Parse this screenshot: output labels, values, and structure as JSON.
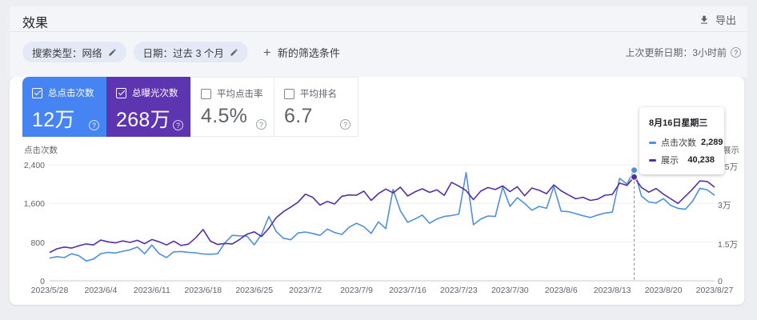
{
  "page": {
    "title": "效果",
    "export_label": "导出",
    "filters": [
      {
        "label": "搜索类型：网络"
      },
      {
        "label": "日期：过去 3 个月"
      }
    ],
    "new_filter_label": "新的筛选条件",
    "last_updated": "上次更新日期：3小时前"
  },
  "cards": [
    {
      "label": "总点击次数",
      "value": "12万",
      "checked": true,
      "color": "#4684f3"
    },
    {
      "label": "总曝光次数",
      "value": "268万",
      "checked": true,
      "color": "#5e35b1"
    },
    {
      "label": "平均点击率",
      "value": "4.5%",
      "checked": false,
      "color": ""
    },
    {
      "label": "平均排名",
      "value": "6.7",
      "checked": false,
      "color": ""
    }
  ],
  "tooltip": {
    "title": "8月16日星期三",
    "rows": [
      {
        "label": "点击次数",
        "value": "2,289",
        "color": "#4f90d9"
      },
      {
        "label": "展示",
        "value": "40,238",
        "color": "#5430a5"
      }
    ]
  },
  "chart_data": {
    "type": "line",
    "legend_position": "none",
    "grid": true,
    "x_tick_labels": [
      "2023/5/28",
      "2023/6/4",
      "2023/6/11",
      "2023/6/18",
      "2023/6/25",
      "2023/7/2",
      "2023/7/9",
      "2023/7/16",
      "2023/7/23",
      "2023/7/30",
      "2023/8/6",
      "2023/8/13",
      "2023/8/20",
      "2023/8/27"
    ],
    "x_tick_indices": [
      0,
      7,
      14,
      21,
      28,
      35,
      42,
      49,
      56,
      63,
      70,
      77,
      84,
      91
    ],
    "left_axis": {
      "title": "点击次数",
      "ticks": [
        "2,400",
        "1,600",
        "800",
        "0"
      ],
      "tick_values": [
        2400,
        1600,
        800,
        0
      ],
      "max": 2400
    },
    "right_axis": {
      "title": "展示",
      "ticks": [
        "4.5万",
        "3万",
        "1.5万",
        "0"
      ],
      "tick_values": [
        45000,
        30000,
        15000,
        0
      ],
      "max": 45000
    },
    "series": [
      {
        "name": "点击次数",
        "axis": "left",
        "color": "#4f90d9",
        "values": [
          470,
          500,
          480,
          560,
          520,
          410,
          450,
          560,
          590,
          575,
          610,
          640,
          700,
          560,
          740,
          560,
          480,
          600,
          605,
          590,
          580,
          555,
          550,
          560,
          790,
          940,
          930,
          925,
          745,
          960,
          1330,
          1020,
          880,
          850,
          990,
          1010,
          980,
          940,
          1070,
          1000,
          960,
          1110,
          1190,
          1120,
          980,
          1220,
          1080,
          1890,
          1450,
          1210,
          1280,
          1360,
          1190,
          1280,
          1330,
          1350,
          1380,
          2240,
          1160,
          1280,
          1340,
          1330,
          1940,
          1540,
          1720,
          1600,
          1460,
          1540,
          1500,
          1950,
          1440,
          1430,
          1390,
          1345,
          1310,
          1360,
          1400,
          1420,
          2120,
          2000,
          2289,
          1750,
          1630,
          1610,
          1700,
          1560,
          1500,
          1480,
          1650,
          1915,
          1880,
          1770
        ]
      },
      {
        "name": "展示",
        "axis": "right",
        "color": "#5430a5",
        "values": [
          11000,
          12400,
          13100,
          12700,
          13600,
          14300,
          13900,
          15800,
          15100,
          14700,
          15500,
          14900,
          15700,
          14400,
          16000,
          15100,
          13900,
          15400,
          13700,
          14200,
          16700,
          19900,
          15400,
          14100,
          14500,
          14300,
          16000,
          18100,
          19000,
          17200,
          20400,
          24500,
          26800,
          28600,
          30500,
          33600,
          32400,
          29400,
          30800,
          29800,
          32800,
          33300,
          33200,
          34800,
          31200,
          33800,
          35600,
          34100,
          36300,
          32900,
          34500,
          35700,
          34300,
          35300,
          33100,
          38200,
          36700,
          35000,
          31500,
          34800,
          36200,
          35400,
          36800,
          34600,
          36500,
          33000,
          36000,
          35100,
          33800,
          37200,
          34900,
          33300,
          31800,
          32400,
          31200,
          31700,
          33200,
          33500,
          37900,
          37000,
          40238,
          36200,
          34400,
          35800,
          33600,
          31800,
          30000,
          32800,
          35600,
          38800,
          38500,
          36300
        ]
      }
    ],
    "hover": {
      "index": 80,
      "date_label": "8月16日星期三",
      "clicks": 2289,
      "impressions": 40238
    }
  },
  "colors": {
    "clicks_card": "#4684f3",
    "impressions_card": "#5e35b1",
    "clicks_line": "#4f90d9",
    "impressions_line": "#5430a5",
    "gridline": "#eef0f2",
    "baseline": "#c7cacd",
    "hover_line": "#80868b"
  }
}
